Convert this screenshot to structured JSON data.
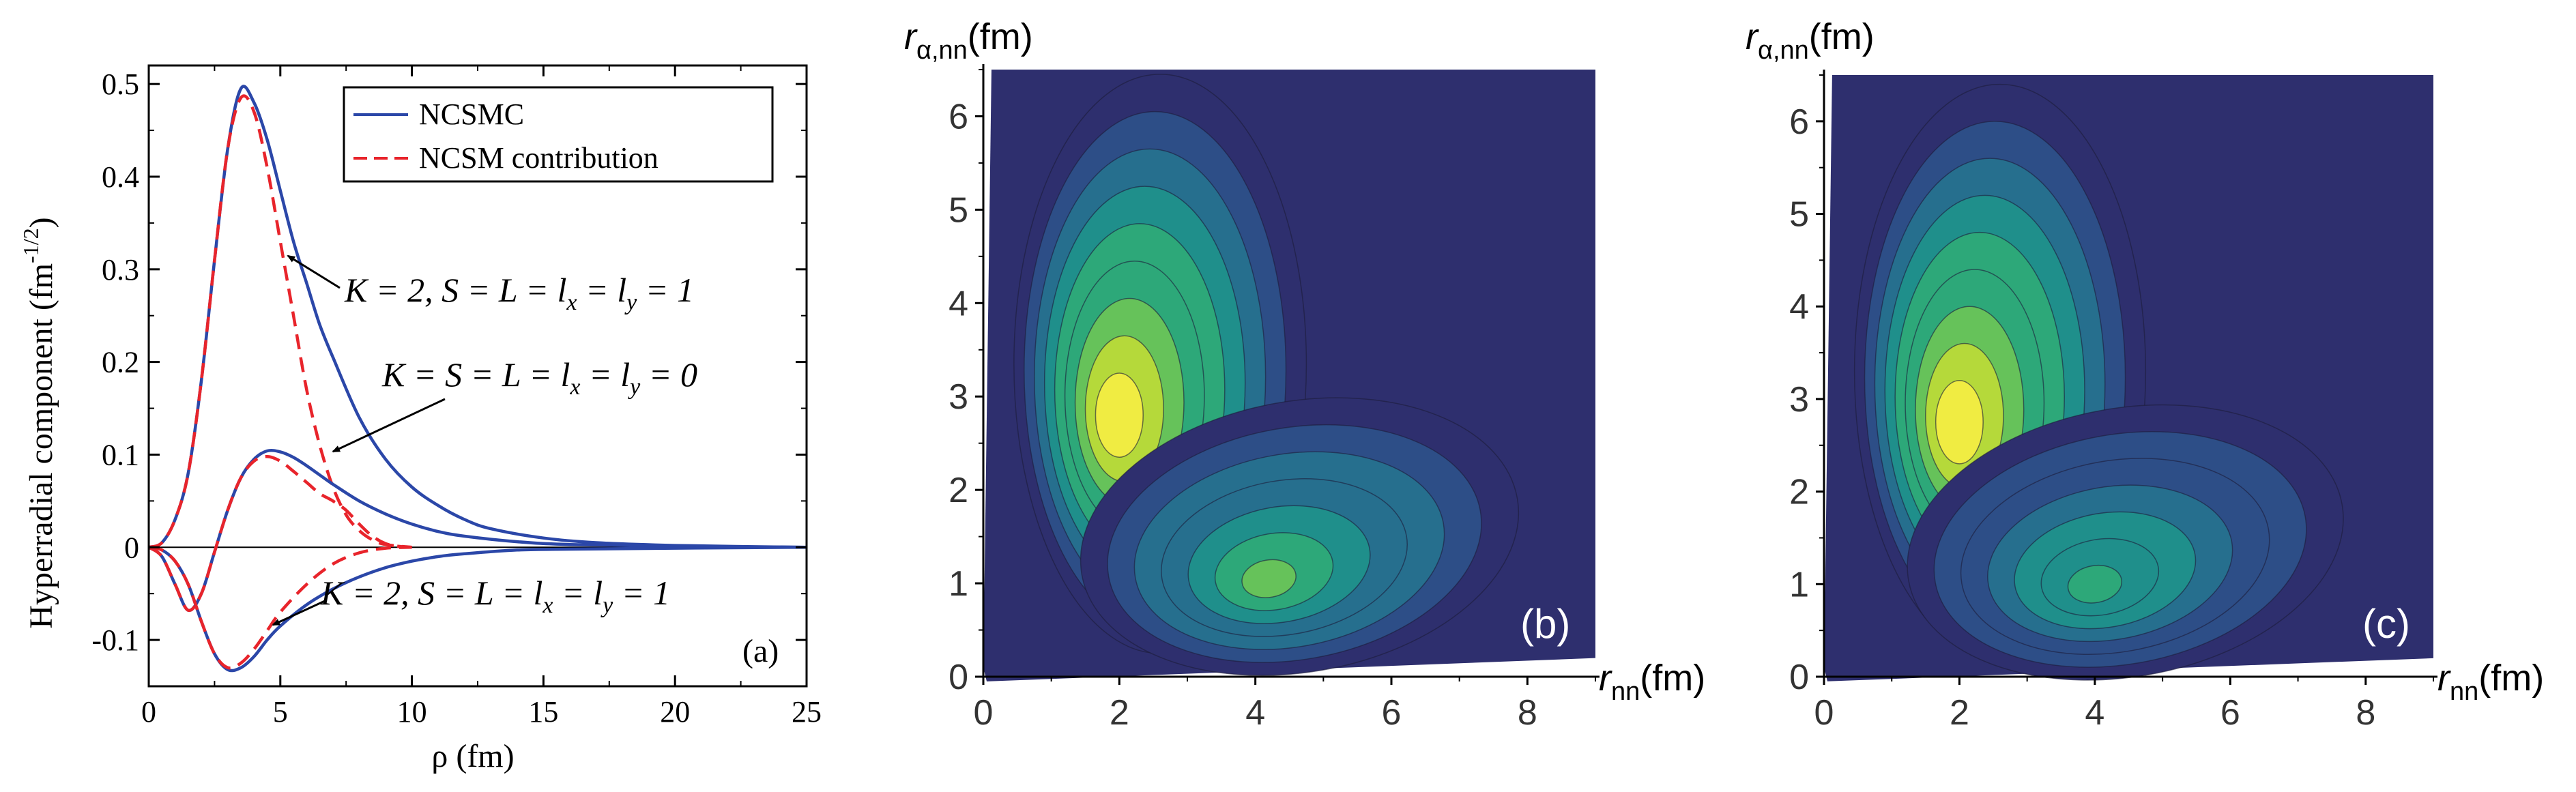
{
  "chart_data": [
    {
      "panel": "a",
      "type": "line",
      "xlabel": "ρ (fm)",
      "ylabel": "Hyperradial component (fm",
      "ylabel_exp": "-1/2",
      "ylabel_close": ")",
      "xlim": [
        0,
        25
      ],
      "ylim": [
        -0.15,
        0.52
      ],
      "xticks": [
        0,
        5,
        10,
        15,
        20,
        25
      ],
      "yticks": [
        -0.1,
        0,
        0.1,
        0.2,
        0.3,
        0.4,
        0.5
      ],
      "xtick_labels": [
        "0",
        "5",
        "10",
        "15",
        "20",
        "25"
      ],
      "ytick_labels": [
        "-0.1",
        "0",
        "0.1",
        "0.2",
        "0.3",
        "0.4",
        "0.5"
      ],
      "legend": {
        "position": "top-right",
        "entries": [
          "NCSMC",
          "NCSM contribution"
        ]
      },
      "panel_label": "(a)",
      "series": [
        {
          "name": "NCSMC",
          "component": "K=2, S=L=lx=ly=1 (upper)",
          "style": "solid",
          "color": "#2b47a8",
          "x": [
            0,
            0.5,
            1,
            1.5,
            2,
            2.5,
            3,
            3.5,
            4,
            4.5,
            5,
            5.5,
            6,
            6.5,
            7,
            8,
            9,
            10,
            11,
            12,
            13,
            15,
            17,
            20,
            25
          ],
          "y": [
            0,
            0.005,
            0.03,
            0.08,
            0.18,
            0.31,
            0.43,
            0.495,
            0.48,
            0.44,
            0.385,
            0.33,
            0.285,
            0.24,
            0.205,
            0.14,
            0.095,
            0.065,
            0.045,
            0.03,
            0.02,
            0.01,
            0.005,
            0.002,
            0
          ]
        },
        {
          "name": "NCSM contribution",
          "component": "K=2, S=L=lx=ly=1 (upper)",
          "style": "dashed",
          "color": "#e8242b",
          "x": [
            0,
            0.5,
            1,
            1.5,
            2,
            2.5,
            3,
            3.5,
            4,
            4.5,
            5,
            5.5,
            6,
            6.5,
            7,
            7.5,
            8,
            8.5,
            9,
            10
          ],
          "y": [
            0,
            0.005,
            0.03,
            0.08,
            0.18,
            0.31,
            0.43,
            0.485,
            0.47,
            0.41,
            0.33,
            0.25,
            0.17,
            0.11,
            0.065,
            0.035,
            0.018,
            0.008,
            0.003,
            0
          ]
        },
        {
          "name": "NCSMC",
          "component": "K=S=L=lx=ly=0",
          "style": "solid",
          "color": "#2b47a8",
          "x": [
            0,
            0.5,
            1,
            1.5,
            2,
            2.5,
            3,
            3.5,
            4,
            4.5,
            5,
            5.5,
            6,
            6.5,
            7,
            8,
            9,
            10,
            11,
            12,
            14,
            16,
            20,
            25
          ],
          "y": [
            0,
            -0.01,
            -0.04,
            -0.068,
            -0.05,
            -0.005,
            0.04,
            0.075,
            0.095,
            0.104,
            0.103,
            0.097,
            0.088,
            0.078,
            0.068,
            0.05,
            0.036,
            0.025,
            0.017,
            0.012,
            0.006,
            0.003,
            0.001,
            0
          ]
        },
        {
          "name": "NCSM contribution",
          "component": "K=S=L=lx=ly=0",
          "style": "dashed",
          "color": "#e8242b",
          "x": [
            0,
            0.5,
            1,
            1.5,
            2,
            2.5,
            3,
            3.5,
            4,
            4.5,
            5,
            5.5,
            6,
            6.5,
            7,
            7.5,
            8,
            8.5,
            9,
            9.5,
            10
          ],
          "y": [
            0,
            -0.01,
            -0.04,
            -0.068,
            -0.05,
            -0.005,
            0.04,
            0.075,
            0.093,
            0.098,
            0.093,
            0.082,
            0.07,
            0.058,
            0.05,
            0.04,
            0.025,
            0.012,
            0.004,
            0.001,
            0
          ]
        },
        {
          "name": "NCSMC",
          "component": "K=2, S=L=lx=ly=1 (lower)",
          "style": "solid",
          "color": "#2b47a8",
          "x": [
            0,
            0.5,
            1,
            1.5,
            2,
            2.5,
            3,
            3.5,
            4,
            4.5,
            5,
            6,
            7,
            8,
            9,
            10,
            11,
            12,
            14,
            16,
            20,
            25
          ],
          "y": [
            0,
            -0.003,
            -0.015,
            -0.04,
            -0.08,
            -0.115,
            -0.132,
            -0.13,
            -0.118,
            -0.1,
            -0.085,
            -0.062,
            -0.045,
            -0.032,
            -0.022,
            -0.015,
            -0.01,
            -0.007,
            -0.003,
            -0.002,
            -0.001,
            0
          ]
        },
        {
          "name": "NCSM contribution",
          "component": "K=2, S=L=lx=ly=1 (lower)",
          "style": "dashed",
          "color": "#e8242b",
          "x": [
            0,
            0.5,
            1,
            1.5,
            2,
            2.5,
            3,
            3.5,
            4,
            4.5,
            5,
            6,
            7,
            8,
            9,
            10
          ],
          "y": [
            0,
            -0.003,
            -0.015,
            -0.04,
            -0.08,
            -0.115,
            -0.13,
            -0.125,
            -0.11,
            -0.09,
            -0.07,
            -0.04,
            -0.018,
            -0.006,
            -0.001,
            0
          ]
        }
      ],
      "annotations": [
        {
          "text": "K = 2, S = L = l",
          "sub": "x",
          "mid": " = l",
          "sub2": "y",
          "tail": " = 1",
          "points_to": [
            5.7,
            0.29
          ]
        },
        {
          "text": "K = S = L = l",
          "sub": "x",
          "mid": " = l",
          "sub2": "y",
          "tail": " = 0",
          "points_to": [
            5.0,
            0.085
          ]
        },
        {
          "text": "K = 2, S = L = l",
          "sub": "x",
          "mid": " = l",
          "sub2": "y",
          "tail": " = 1",
          "points_to": [
            3.6,
            -0.115
          ]
        }
      ]
    },
    {
      "panel": "b",
      "type": "heatmap",
      "xlabel": "r",
      "xlabel_sub": "nn",
      "xlabel_unit": "(fm)",
      "ylabel": "r",
      "ylabel_sub": "α,nn",
      "ylabel_unit": "(fm)",
      "xlim": [
        0,
        9
      ],
      "ylim": [
        0,
        6.5
      ],
      "xticks": [
        0,
        2,
        4,
        6,
        8
      ],
      "yticks": [
        0,
        1,
        2,
        3,
        4,
        5,
        6
      ],
      "xtick_labels": [
        "0",
        "2",
        "4",
        "6",
        "8"
      ],
      "ytick_labels": [
        "0",
        "1",
        "2",
        "3",
        "4",
        "5",
        "6"
      ],
      "panel_label": "(b)",
      "colorscale": [
        "#2e2f6e",
        "#2d4e87",
        "#266f8e",
        "#1f8f8b",
        "#2da879",
        "#66c25a",
        "#b5d93a",
        "#f0ec42"
      ],
      "peaks": [
        {
          "x": 2.0,
          "y": 2.8,
          "level": 1.0
        },
        {
          "x": 4.2,
          "y": 1.05,
          "level": 0.68
        }
      ]
    },
    {
      "panel": "c",
      "type": "heatmap",
      "xlabel": "r",
      "xlabel_sub": "nn",
      "xlabel_unit": "(fm)",
      "ylabel": "r",
      "ylabel_sub": "α,nn",
      "ylabel_unit": "(fm)",
      "xlim": [
        0,
        9
      ],
      "ylim": [
        0,
        6.5
      ],
      "xticks": [
        0,
        2,
        4,
        6,
        8
      ],
      "yticks": [
        0,
        1,
        2,
        3,
        4,
        5,
        6
      ],
      "xtick_labels": [
        "0",
        "2",
        "4",
        "6",
        "8"
      ],
      "ytick_labels": [
        "0",
        "1",
        "2",
        "3",
        "4",
        "5",
        "6"
      ],
      "panel_label": "(c)",
      "colorscale": [
        "#2e2f6e",
        "#2d4e87",
        "#266f8e",
        "#1f8f8b",
        "#2da879",
        "#66c25a",
        "#b5d93a",
        "#f0ec42"
      ],
      "peaks": [
        {
          "x": 2.0,
          "y": 2.75,
          "level": 1.0
        },
        {
          "x": 4.0,
          "y": 1.0,
          "level": 0.55
        }
      ]
    }
  ]
}
